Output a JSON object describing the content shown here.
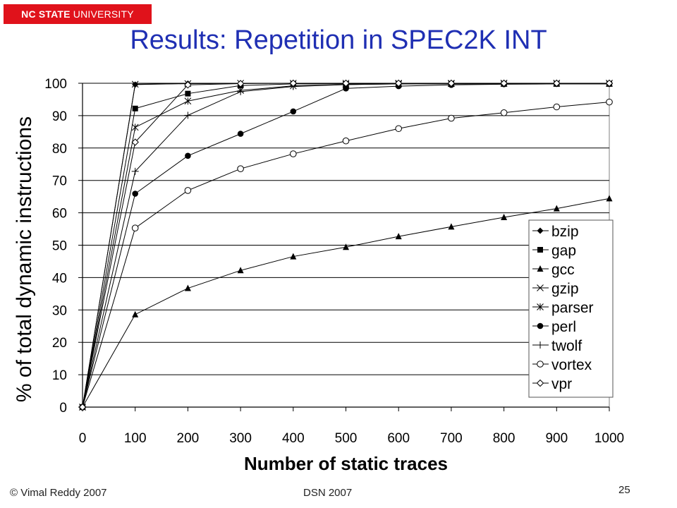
{
  "header": {
    "logo_bold": "NC STATE",
    "logo_rest": " UNIVERSITY",
    "title": "Results: Repetition in SPEC2K INT"
  },
  "footer": {
    "copyright": "© Vimal Reddy 2007",
    "venue": "DSN 2007",
    "slide_number": "25"
  },
  "colors": {
    "logo_bg": "#e0121b",
    "title": "#1f2fb3",
    "series": "#000000"
  },
  "chart_data": {
    "type": "line",
    "title": "",
    "xlabel": "Number of static traces",
    "ylabel": "% of total dynamic instructions",
    "xlim": [
      0,
      1000
    ],
    "ylim": [
      0,
      100
    ],
    "x_ticks": [
      "0",
      "100",
      "200",
      "300",
      "400",
      "500",
      "600",
      "700",
      "800",
      "900",
      "1000"
    ],
    "y_ticks": [
      "0",
      "10",
      "20",
      "30",
      "40",
      "50",
      "60",
      "70",
      "80",
      "90",
      "100"
    ],
    "grid": "horizontal",
    "legend_position": "right",
    "x": [
      0,
      100,
      200,
      300,
      400,
      500,
      600,
      700,
      800,
      900,
      1000
    ],
    "series": [
      {
        "name": "bzip",
        "marker": "diamond-filled",
        "values": [
          0,
          99.6,
          99.9,
          100,
          100,
          100,
          100,
          100,
          100,
          100,
          100
        ]
      },
      {
        "name": "gap",
        "marker": "square-filled",
        "values": [
          0,
          92.2,
          96.8,
          99.3,
          99.8,
          99.8,
          99.8,
          99.8,
          99.8,
          99.8,
          99.8
        ]
      },
      {
        "name": "gcc",
        "marker": "triangle-filled",
        "values": [
          0,
          28.6,
          36.7,
          42.2,
          46.5,
          49.4,
          52.7,
          55.7,
          58.6,
          61.3,
          64.4
        ]
      },
      {
        "name": "gzip",
        "marker": "x",
        "values": [
          0,
          99.7,
          99.9,
          100,
          100,
          100,
          100,
          100,
          100,
          100,
          100
        ]
      },
      {
        "name": "parser",
        "marker": "asterisk",
        "values": [
          0,
          86.4,
          94.5,
          97.8,
          99.2,
          99.6,
          99.8,
          99.9,
          100,
          100,
          100
        ]
      },
      {
        "name": "perl",
        "marker": "circle-filled",
        "values": [
          0,
          65.9,
          77.6,
          84.4,
          91.3,
          98.4,
          99.1,
          99.5,
          99.7,
          99.8,
          99.8
        ]
      },
      {
        "name": "twolf",
        "marker": "plus",
        "values": [
          0,
          72.8,
          90.1,
          97.4,
          99,
          99.6,
          99.8,
          99.9,
          100,
          100,
          100
        ]
      },
      {
        "name": "vortex",
        "marker": "circle-open",
        "values": [
          0,
          55.3,
          66.9,
          73.6,
          78.2,
          82.2,
          86,
          89.2,
          90.9,
          92.7,
          94.2
        ]
      },
      {
        "name": "vpr",
        "marker": "diamond-open",
        "values": [
          0,
          81.8,
          99.5,
          99.9,
          100,
          100,
          100,
          100,
          100,
          100,
          100
        ]
      }
    ]
  }
}
